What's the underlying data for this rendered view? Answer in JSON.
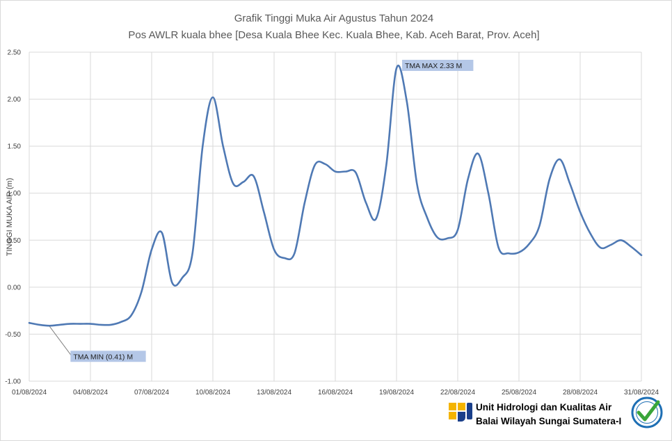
{
  "chart_data": {
    "type": "line",
    "title": "Grafik Tinggi Muka Air Agustus Tahun 2024",
    "subtitle": "Pos AWLR kuala bhee [Desa Kuala Bhee Kec. Kuala Bhee, Kab. Aceh Barat, Prov. Aceh]",
    "ylabel": "TINGGI MUKA AIR (m)",
    "xlabel": "",
    "ylim": [
      -1.0,
      2.5
    ],
    "yticks": [
      -1.0,
      -0.5,
      0.0,
      0.5,
      1.0,
      1.5,
      2.0,
      2.5
    ],
    "ytick_labels": [
      "-1.00",
      "-0.50",
      "0.00",
      "0.50",
      "1.00",
      "1.50",
      "2.00",
      "2.50"
    ],
    "xlim": [
      "01/08/2024",
      "31/08/2024"
    ],
    "xtick_labels": [
      "01/08/2024",
      "04/08/2024",
      "07/08/2024",
      "10/08/2024",
      "13/08/2024",
      "16/08/2024",
      "19/08/2024",
      "22/08/2024",
      "25/08/2024",
      "28/08/2024",
      "31/08/2024"
    ],
    "grid": true,
    "line_color": "#4f79b4",
    "series": [
      {
        "x": [
          "01/08/2024",
          "01/08/2024 12:00",
          "02/08/2024",
          "02/08/2024 12:00",
          "03/08/2024",
          "03/08/2024 12:00",
          "04/08/2024",
          "04/08/2024 12:00",
          "05/08/2024",
          "05/08/2024 12:00",
          "06/08/2024",
          "06/08/2024 12:00",
          "07/08/2024",
          "07/08/2024 12:00",
          "08/08/2024",
          "08/08/2024 12:00",
          "09/08/2024",
          "09/08/2024 12:00",
          "10/08/2024",
          "10/08/2024 12:00",
          "11/08/2024",
          "11/08/2024 12:00",
          "12/08/2024",
          "12/08/2024 12:00",
          "13/08/2024",
          "13/08/2024 12:00",
          "14/08/2024",
          "14/08/2024 12:00",
          "15/08/2024",
          "15/08/2024 12:00",
          "16/08/2024",
          "16/08/2024 12:00",
          "17/08/2024",
          "17/08/2024 12:00",
          "18/08/2024",
          "18/08/2024 12:00",
          "19/08/2024",
          "19/08/2024 12:00",
          "20/08/2024",
          "20/08/2024 12:00",
          "21/08/2024",
          "21/08/2024 12:00",
          "22/08/2024",
          "22/08/2024 12:00",
          "23/08/2024",
          "23/08/2024 12:00",
          "24/08/2024",
          "24/08/2024 12:00",
          "25/08/2024",
          "25/08/2024 12:00",
          "26/08/2024",
          "26/08/2024 12:00",
          "27/08/2024",
          "27/08/2024 12:00",
          "28/08/2024",
          "28/08/2024 12:00",
          "29/08/2024",
          "29/08/2024 12:00",
          "30/08/2024",
          "30/08/2024 12:00",
          "31/08/2024"
        ],
        "values": [
          -0.38,
          -0.4,
          -0.41,
          -0.4,
          -0.39,
          -0.39,
          -0.39,
          -0.4,
          -0.4,
          -0.37,
          -0.3,
          -0.05,
          0.4,
          0.58,
          0.05,
          0.1,
          0.36,
          1.5,
          2.02,
          1.5,
          1.1,
          1.12,
          1.18,
          0.8,
          0.4,
          0.31,
          0.36,
          0.9,
          1.3,
          1.31,
          1.23,
          1.23,
          1.22,
          0.9,
          0.73,
          1.3,
          2.33,
          1.98,
          1.1,
          0.74,
          0.53,
          0.52,
          0.61,
          1.15,
          1.42,
          1.0,
          0.42,
          0.36,
          0.37,
          0.46,
          0.65,
          1.15,
          1.36,
          1.1,
          0.8,
          0.57,
          0.42,
          0.45,
          0.5,
          0.43,
          0.34
        ]
      }
    ],
    "annotations": [
      {
        "text": "TMA MAX  2.33  M",
        "x": "19/08/2024",
        "y": 2.33
      },
      {
        "text": "TMA MIN  (0.41) M",
        "x": "02/08/2024",
        "y": -0.41
      }
    ]
  },
  "footer": {
    "line1": "Unit Hidrologi dan Kualitas Air",
    "line2": "Balai Wilayah Sungai Sumatera-I"
  }
}
